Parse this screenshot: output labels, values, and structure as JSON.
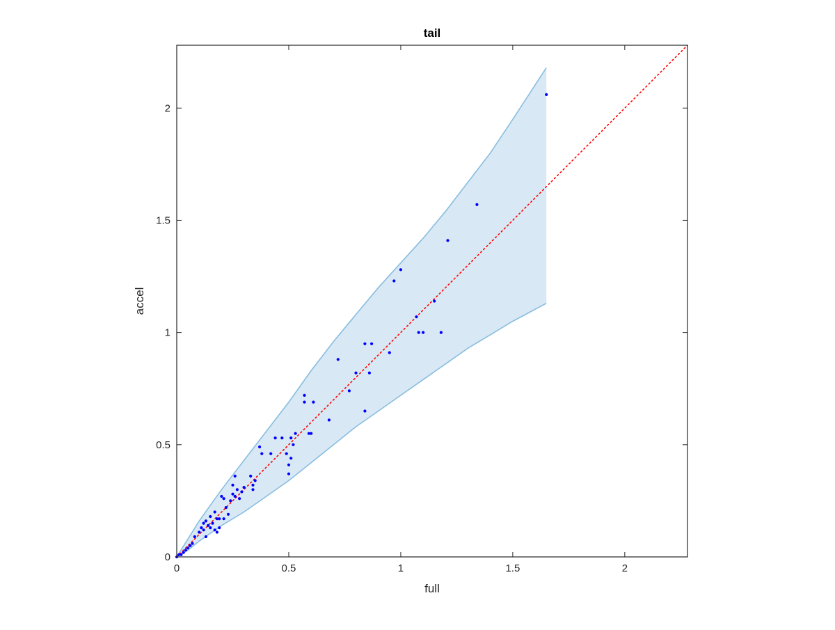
{
  "chart_data": {
    "type": "scatter",
    "title": "tail",
    "xlabel": "full",
    "ylabel": "accel",
    "xlim": [
      0,
      2.28
    ],
    "ylim": [
      0,
      2.28
    ],
    "x_ticks": [
      0,
      0.5,
      1,
      1.5,
      2
    ],
    "y_ticks": [
      0,
      0.5,
      1,
      1.5,
      2
    ],
    "x_tick_labels": [
      "0",
      "0.5",
      "1",
      "1.5",
      "2"
    ],
    "y_tick_labels": [
      "0",
      "0.5",
      "1",
      "1.5",
      "2"
    ],
    "grid": false,
    "box": true,
    "colors": {
      "points": "#0000ff",
      "reference_line": "#ff0000",
      "band_fill": "#d8e8f4",
      "band_edge": "#88bde0",
      "axes": "#262626"
    },
    "reference_line": {
      "style": "dotted",
      "x": [
        0,
        2.28
      ],
      "y": [
        0,
        2.28
      ]
    },
    "band": {
      "x": [
        0,
        0.05,
        0.1,
        0.2,
        0.3,
        0.4,
        0.5,
        0.6,
        0.7,
        0.8,
        0.9,
        1.0,
        1.1,
        1.2,
        1.3,
        1.4,
        1.5,
        1.65
      ],
      "upper": [
        0,
        0.08,
        0.16,
        0.3,
        0.43,
        0.56,
        0.69,
        0.83,
        0.96,
        1.08,
        1.2,
        1.31,
        1.42,
        1.54,
        1.67,
        1.8,
        1.95,
        2.18
      ],
      "lower": [
        0,
        0.03,
        0.07,
        0.14,
        0.2,
        0.27,
        0.34,
        0.42,
        0.5,
        0.58,
        0.65,
        0.72,
        0.79,
        0.86,
        0.93,
        0.99,
        1.05,
        1.13
      ]
    },
    "series": [
      {
        "x": [
          0.0,
          0.01,
          0.02,
          0.03,
          0.04,
          0.05,
          0.06,
          0.07,
          0.08,
          0.1,
          0.11,
          0.12,
          0.12,
          0.13,
          0.13,
          0.14,
          0.15,
          0.15,
          0.16,
          0.17,
          0.17,
          0.18,
          0.18,
          0.19,
          0.19,
          0.2,
          0.21,
          0.21,
          0.22,
          0.23,
          0.24,
          0.25,
          0.25,
          0.26,
          0.26,
          0.27,
          0.28,
          0.29,
          0.3,
          0.33,
          0.34,
          0.34,
          0.35,
          0.37,
          0.38,
          0.42,
          0.44,
          0.47,
          0.49,
          0.5,
          0.5,
          0.51,
          0.51,
          0.52,
          0.53,
          0.57,
          0.57,
          0.59,
          0.6,
          0.61,
          0.68,
          0.72,
          0.77,
          0.8,
          0.84,
          0.84,
          0.86,
          0.87,
          0.95,
          0.97,
          1.0,
          1.07,
          1.08,
          1.1,
          1.15,
          1.18,
          1.21,
          1.34,
          1.65
        ],
        "y": [
          0.0,
          0.01,
          0.01,
          0.02,
          0.03,
          0.04,
          0.05,
          0.06,
          0.09,
          0.11,
          0.13,
          0.15,
          0.12,
          0.16,
          0.09,
          0.14,
          0.13,
          0.18,
          0.15,
          0.12,
          0.2,
          0.17,
          0.11,
          0.17,
          0.13,
          0.27,
          0.26,
          0.17,
          0.22,
          0.19,
          0.25,
          0.28,
          0.32,
          0.27,
          0.36,
          0.3,
          0.26,
          0.29,
          0.31,
          0.36,
          0.32,
          0.3,
          0.34,
          0.49,
          0.46,
          0.46,
          0.53,
          0.53,
          0.46,
          0.41,
          0.37,
          0.53,
          0.44,
          0.5,
          0.55,
          0.72,
          0.69,
          0.55,
          0.55,
          0.69,
          0.61,
          0.88,
          0.74,
          0.82,
          0.95,
          0.65,
          0.82,
          0.95,
          0.91,
          1.23,
          1.28,
          1.07,
          1.0,
          1.0,
          1.14,
          1.0,
          1.41,
          1.57,
          2.06
        ]
      }
    ]
  }
}
